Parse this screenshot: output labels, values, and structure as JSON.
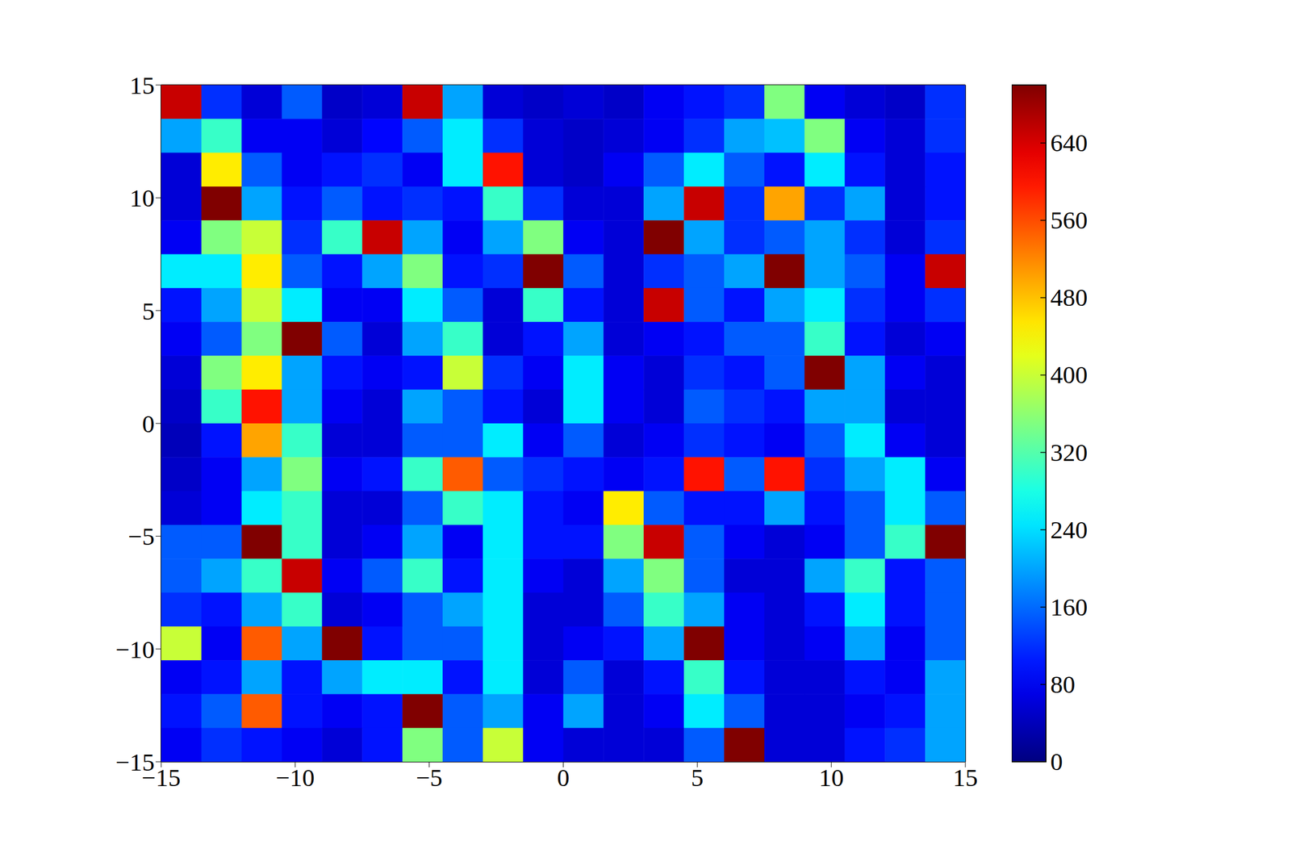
{
  "chart_data": {
    "type": "heatmap",
    "xlim": [
      -15,
      15
    ],
    "ylim": [
      -15,
      15
    ],
    "xticks": [
      {
        "value": -15,
        "label": "−15"
      },
      {
        "value": -10,
        "label": "−10"
      },
      {
        "value": -5,
        "label": "−5"
      },
      0,
      5,
      10,
      15
    ],
    "yticks": [
      {
        "value": -15,
        "label": "−15"
      },
      {
        "value": -10,
        "label": "−10"
      },
      {
        "value": -5,
        "label": "−5"
      },
      0,
      5,
      10,
      15
    ],
    "x": [
      -14.25,
      -12.75,
      -11.25,
      -9.75,
      -8.25,
      -6.75,
      -5.25,
      -3.75,
      -2.25,
      -0.75,
      0.75,
      2.25,
      3.75,
      5.25,
      6.75,
      8.25,
      9.75,
      11.25,
      12.75,
      14.25
    ],
    "y": [
      14.25,
      12.75,
      11.25,
      9.75,
      8.25,
      6.75,
      5.25,
      3.75,
      2.25,
      0.75,
      -0.75,
      -2.25,
      -3.75,
      -5.25,
      -6.75,
      -8.25,
      -9.75,
      -11.25,
      -12.75,
      -14.25
    ],
    "cells": [
      [
        650,
        120,
        60,
        150,
        50,
        60,
        650,
        200,
        60,
        50,
        60,
        50,
        80,
        100,
        120,
        350,
        80,
        60,
        50,
        120
      ],
      [
        200,
        300,
        80,
        80,
        60,
        90,
        150,
        250,
        120,
        60,
        50,
        60,
        80,
        120,
        200,
        220,
        350,
        80,
        60,
        120
      ],
      [
        60,
        450,
        150,
        80,
        100,
        120,
        80,
        250,
        600,
        60,
        50,
        80,
        150,
        250,
        150,
        100,
        250,
        100,
        60,
        100
      ],
      [
        60,
        700,
        200,
        100,
        150,
        100,
        120,
        100,
        300,
        120,
        60,
        60,
        200,
        650,
        120,
        500,
        120,
        200,
        60,
        100
      ],
      [
        80,
        350,
        400,
        120,
        300,
        650,
        200,
        80,
        200,
        350,
        80,
        60,
        700,
        200,
        120,
        150,
        200,
        120,
        60,
        120
      ],
      [
        250,
        250,
        450,
        150,
        100,
        200,
        350,
        100,
        120,
        700,
        150,
        60,
        120,
        150,
        200,
        700,
        200,
        150,
        80,
        650
      ],
      [
        100,
        200,
        400,
        250,
        80,
        80,
        250,
        150,
        60,
        300,
        100,
        60,
        650,
        150,
        100,
        200,
        250,
        120,
        80,
        120
      ],
      [
        80,
        150,
        350,
        700,
        150,
        60,
        200,
        300,
        60,
        100,
        200,
        60,
        80,
        100,
        150,
        150,
        300,
        100,
        60,
        80
      ],
      [
        60,
        350,
        450,
        200,
        100,
        80,
        100,
        400,
        120,
        80,
        250,
        80,
        60,
        120,
        100,
        150,
        700,
        200,
        80,
        60
      ],
      [
        50,
        300,
        600,
        200,
        80,
        60,
        200,
        150,
        100,
        60,
        250,
        80,
        60,
        150,
        120,
        100,
        200,
        200,
        60,
        60
      ],
      [
        40,
        100,
        500,
        300,
        60,
        60,
        150,
        150,
        250,
        80,
        150,
        60,
        80,
        120,
        100,
        80,
        150,
        250,
        80,
        60
      ],
      [
        50,
        80,
        200,
        350,
        80,
        100,
        300,
        550,
        150,
        120,
        100,
        80,
        100,
        600,
        150,
        600,
        120,
        200,
        250,
        80
      ],
      [
        60,
        80,
        250,
        300,
        60,
        60,
        150,
        300,
        250,
        100,
        80,
        450,
        150,
        100,
        100,
        200,
        100,
        150,
        250,
        150
      ],
      [
        150,
        150,
        700,
        300,
        60,
        80,
        200,
        80,
        250,
        100,
        100,
        350,
        650,
        150,
        80,
        60,
        80,
        150,
        300,
        700
      ],
      [
        150,
        200,
        300,
        650,
        80,
        150,
        300,
        100,
        250,
        80,
        60,
        200,
        350,
        150,
        60,
        60,
        200,
        300,
        100,
        150
      ],
      [
        120,
        100,
        200,
        300,
        60,
        80,
        150,
        200,
        250,
        60,
        60,
        150,
        300,
        200,
        80,
        60,
        100,
        250,
        100,
        150
      ],
      [
        400,
        80,
        550,
        200,
        700,
        100,
        150,
        150,
        250,
        60,
        80,
        100,
        200,
        700,
        80,
        60,
        80,
        200,
        80,
        150
      ],
      [
        80,
        100,
        200,
        100,
        200,
        250,
        250,
        100,
        250,
        60,
        150,
        60,
        100,
        300,
        100,
        60,
        60,
        100,
        80,
        200
      ],
      [
        100,
        150,
        550,
        100,
        80,
        100,
        700,
        150,
        200,
        80,
        200,
        60,
        80,
        250,
        150,
        60,
        60,
        80,
        100,
        200
      ],
      [
        80,
        120,
        100,
        80,
        60,
        100,
        350,
        150,
        400,
        80,
        60,
        60,
        60,
        150,
        700,
        60,
        60,
        100,
        120,
        200
      ]
    ],
    "colorbar": {
      "range": [
        0,
        700
      ],
      "ticks": [
        0,
        80,
        160,
        240,
        320,
        400,
        480,
        560,
        640
      ]
    }
  }
}
